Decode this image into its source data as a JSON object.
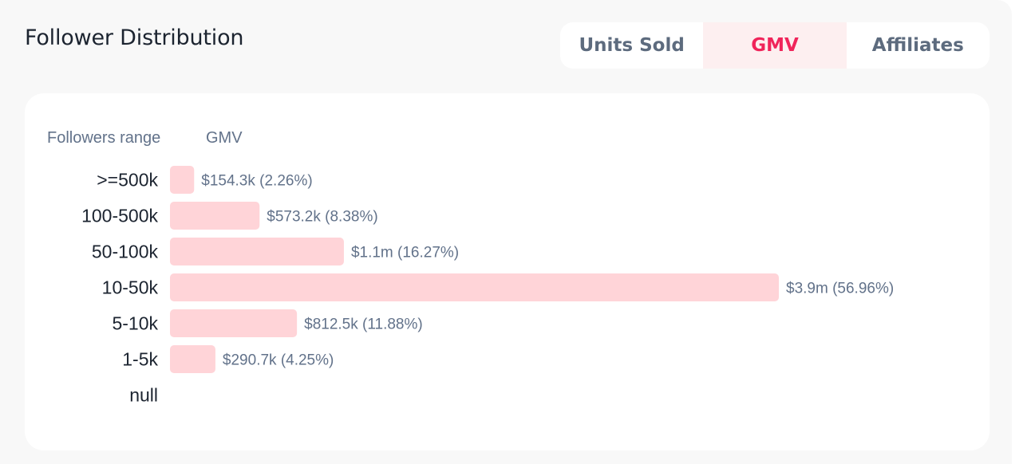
{
  "title": "Follower Distribution",
  "tabs": [
    {
      "label": "Units Sold",
      "active": false
    },
    {
      "label": "GMV",
      "active": true
    },
    {
      "label": "Affiliates",
      "active": false
    }
  ],
  "colors": {
    "bar": "#ffd4d8",
    "active_tab_text": "#f0245a",
    "active_tab_bg": "#fdeff0",
    "label_text": "#62728a",
    "category_text": "#1c2430"
  },
  "chart_data": {
    "type": "bar",
    "orientation": "horizontal",
    "column_headers": [
      "Followers range",
      "GMV"
    ],
    "categories": [
      ">=500k",
      "100-500k",
      "50-100k",
      "10-50k",
      "5-10k",
      "1-5k",
      "null"
    ],
    "values": [
      2.26,
      8.38,
      16.27,
      56.96,
      11.88,
      4.25,
      null
    ],
    "value_unit": "% of GMV",
    "data_labels": [
      "$154.3k (2.26%)",
      "$573.2k (8.38%)",
      "$1.1m (16.27%)",
      "$3.9m (56.96%)",
      "$812.5k (11.88%)",
      "$290.7k (4.25%)",
      ""
    ],
    "grid": false,
    "legend": "none"
  }
}
